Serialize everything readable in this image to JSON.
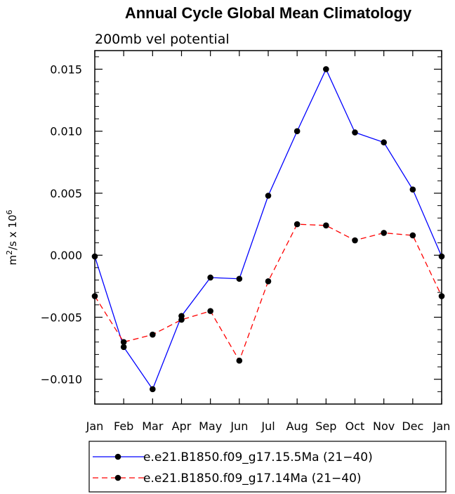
{
  "chart_data": {
    "type": "line",
    "title": "Annual Cycle Global Mean Climatology",
    "subtitle": "200mb vel potential",
    "ylabel_base": "m",
    "ylabel_sup1": "2",
    "ylabel_mid": "/s x 10",
    "ylabel_sup2": "6",
    "xlabel": "",
    "categories": [
      "Jan",
      "Feb",
      "Mar",
      "Apr",
      "May",
      "Jun",
      "Jul",
      "Aug",
      "Sep",
      "Oct",
      "Nov",
      "Dec",
      "Jan"
    ],
    "ylim": [
      -0.012,
      0.0165
    ],
    "yticks": [
      -0.01,
      -0.005,
      0.0,
      0.005,
      0.01,
      0.015
    ],
    "ytick_labels": [
      "−0.010",
      "−0.005",
      "0.000",
      "0.005",
      "0.010",
      "0.015"
    ],
    "grid": false,
    "legend_position": "bottom",
    "series": [
      {
        "name": "e.e21.B1850.f09_g17.15.5Ma (21−40)",
        "color": "#0000ff",
        "dash": "solid",
        "values": [
          -0.0001,
          -0.0074,
          -0.0108,
          -0.0049,
          -0.0018,
          -0.0019,
          0.0048,
          0.01,
          0.015,
          0.0099,
          0.0091,
          0.0053,
          -0.0001
        ]
      },
      {
        "name": "e.e21.B1850.f09_g17.14Ma (21−40)",
        "color": "#ff0000",
        "dash": "dashed",
        "values": [
          -0.0033,
          -0.007,
          -0.0064,
          -0.0052,
          -0.0045,
          -0.0085,
          -0.0021,
          0.0025,
          0.0024,
          0.0012,
          0.0018,
          0.0016,
          -0.0033
        ]
      }
    ]
  }
}
